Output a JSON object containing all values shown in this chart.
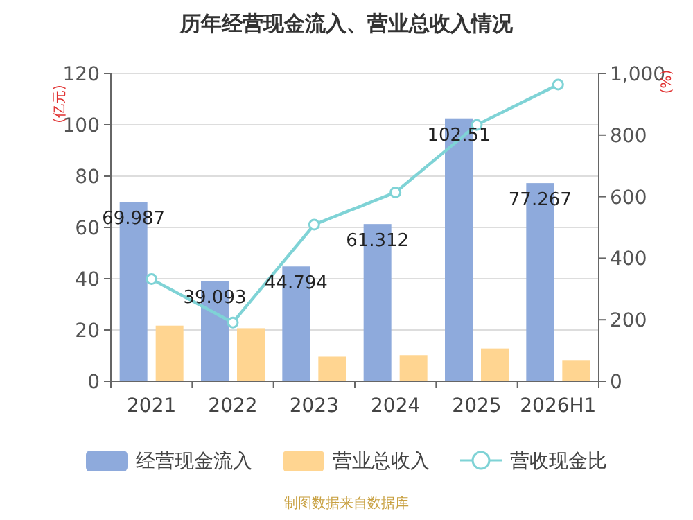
{
  "chart_data": {
    "type": "bar",
    "title": "历年经营现金流入、营业总收入情况",
    "categories": [
      "2021",
      "2022",
      "2023",
      "2024",
      "2025",
      "2026H1"
    ],
    "series": [
      {
        "name": "经营现金流入",
        "color": "#8eaadc",
        "values": [
          69.987,
          39.093,
          44.794,
          61.312,
          102.51,
          77.267
        ],
        "value_labels": [
          "69.987",
          "39.093",
          "44.794",
          "61.312",
          "102.51",
          "77.267"
        ]
      },
      {
        "name": "营业总收入",
        "color": "#ffd591",
        "values": [
          21.7,
          20.7,
          9.6,
          10.2,
          12.8,
          8.3
        ]
      },
      {
        "name": "营收现金比",
        "type": "line",
        "axis": "y2",
        "color": "#7fd3d6",
        "marker": "circle",
        "values": [
          332,
          191,
          509,
          614,
          833,
          964
        ]
      }
    ],
    "ylabel": "(亿元)",
    "y2label": "(%)",
    "ylim": [
      0,
      120
    ],
    "yticks": [
      0,
      20,
      40,
      60,
      80,
      100,
      120
    ],
    "y2lim": [
      0,
      1000
    ],
    "y2ticks": [
      0,
      200,
      400,
      600,
      800,
      {
        "value": 1000,
        "label": "1,000"
      }
    ],
    "grid": "y",
    "legend": "bottom",
    "annotations": [
      "制图数据来自数据库"
    ]
  }
}
